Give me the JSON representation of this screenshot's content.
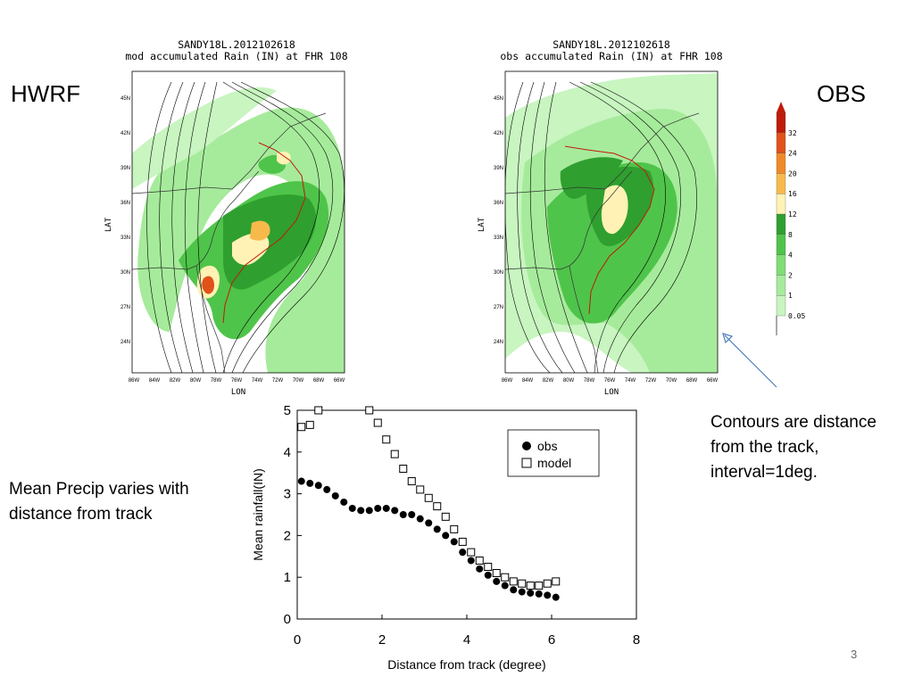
{
  "slide": {
    "left_label": "HWRF",
    "right_label": "OBS",
    "page_number": "3",
    "left_note": "Mean Precip varies with distance from track",
    "right_note": "Contours are distance from the track, interval=1deg."
  },
  "maps": [
    {
      "title_line1": "SANDY18L.2012102618",
      "title_line2": "mod accumulated Rain (IN) at FHR 108",
      "ylabel": "LAT",
      "xlabel": "LON",
      "lat_ticks": [
        "45N",
        "42N",
        "39N",
        "36N",
        "33N",
        "30N",
        "27N",
        "24N"
      ],
      "lon_ticks": [
        "86W",
        "84W",
        "82W",
        "80W",
        "78W",
        "76W",
        "74W",
        "72W",
        "70W",
        "68W",
        "66W"
      ]
    },
    {
      "title_line1": "SANDY18L.2012102618",
      "title_line2": "obs accumulated Rain (IN) at FHR 108",
      "ylabel": "LAT",
      "xlabel": "LON",
      "lat_ticks": [
        "45N",
        "42N",
        "39N",
        "36N",
        "33N",
        "30N",
        "27N",
        "24N"
      ],
      "lon_ticks": [
        "86W",
        "84W",
        "82W",
        "80W",
        "78W",
        "76W",
        "74W",
        "72W",
        "70W",
        "68W",
        "66W"
      ]
    }
  ],
  "colorbar": {
    "levels": [
      "0.05",
      "1",
      "2",
      "4",
      "8",
      "12",
      "16",
      "20",
      "24",
      "32"
    ],
    "colors": [
      "#c8f5c0",
      "#a6eb9b",
      "#7fdd74",
      "#4fc44a",
      "#2f9f2f",
      "#fff2b4",
      "#f8b94b",
      "#f08a28",
      "#e0521a",
      "#c01a0a"
    ]
  },
  "chart_data": {
    "type": "scatter",
    "xlabel": "Distance from track (degree)",
    "ylabel": "Mean rainfall(IN)",
    "xlim": [
      0,
      8
    ],
    "ylim": [
      0,
      5
    ],
    "x_ticks": [
      "0",
      "2",
      "4",
      "6",
      "8"
    ],
    "y_ticks": [
      "0",
      "1",
      "2",
      "3",
      "4",
      "5"
    ],
    "grid": false,
    "legend_position": "top-right",
    "series": [
      {
        "name": "obs",
        "marker": "filled-circle",
        "color": "#000000",
        "x": [
          0.1,
          0.3,
          0.5,
          0.7,
          0.9,
          1.1,
          1.3,
          1.5,
          1.7,
          1.9,
          2.1,
          2.3,
          2.5,
          2.7,
          2.9,
          3.1,
          3.3,
          3.5,
          3.7,
          3.9,
          4.1,
          4.3,
          4.5,
          4.7,
          4.9,
          5.1,
          5.3,
          5.5,
          5.7,
          5.9,
          6.1
        ],
        "y": [
          3.3,
          3.25,
          3.2,
          3.1,
          2.95,
          2.8,
          2.65,
          2.6,
          2.6,
          2.65,
          2.65,
          2.6,
          2.5,
          2.5,
          2.4,
          2.3,
          2.15,
          2.0,
          1.85,
          1.6,
          1.4,
          1.2,
          1.05,
          0.9,
          0.8,
          0.7,
          0.65,
          0.62,
          0.6,
          0.57,
          0.52
        ]
      },
      {
        "name": "model",
        "marker": "open-square",
        "color": "#000000",
        "x": [
          0.1,
          0.3,
          0.5,
          1.7,
          1.9,
          2.1,
          2.3,
          2.5,
          2.7,
          2.9,
          3.1,
          3.3,
          3.5,
          3.7,
          3.9,
          4.1,
          4.3,
          4.5,
          4.7,
          4.9,
          5.1,
          5.3,
          5.5,
          5.7,
          5.9,
          6.1
        ],
        "y": [
          4.6,
          4.65,
          5.0,
          5.0,
          4.7,
          4.3,
          3.95,
          3.6,
          3.3,
          3.1,
          2.9,
          2.7,
          2.45,
          2.15,
          1.85,
          1.6,
          1.4,
          1.25,
          1.1,
          1.0,
          0.9,
          0.85,
          0.8,
          0.8,
          0.85,
          0.9
        ]
      }
    ]
  }
}
